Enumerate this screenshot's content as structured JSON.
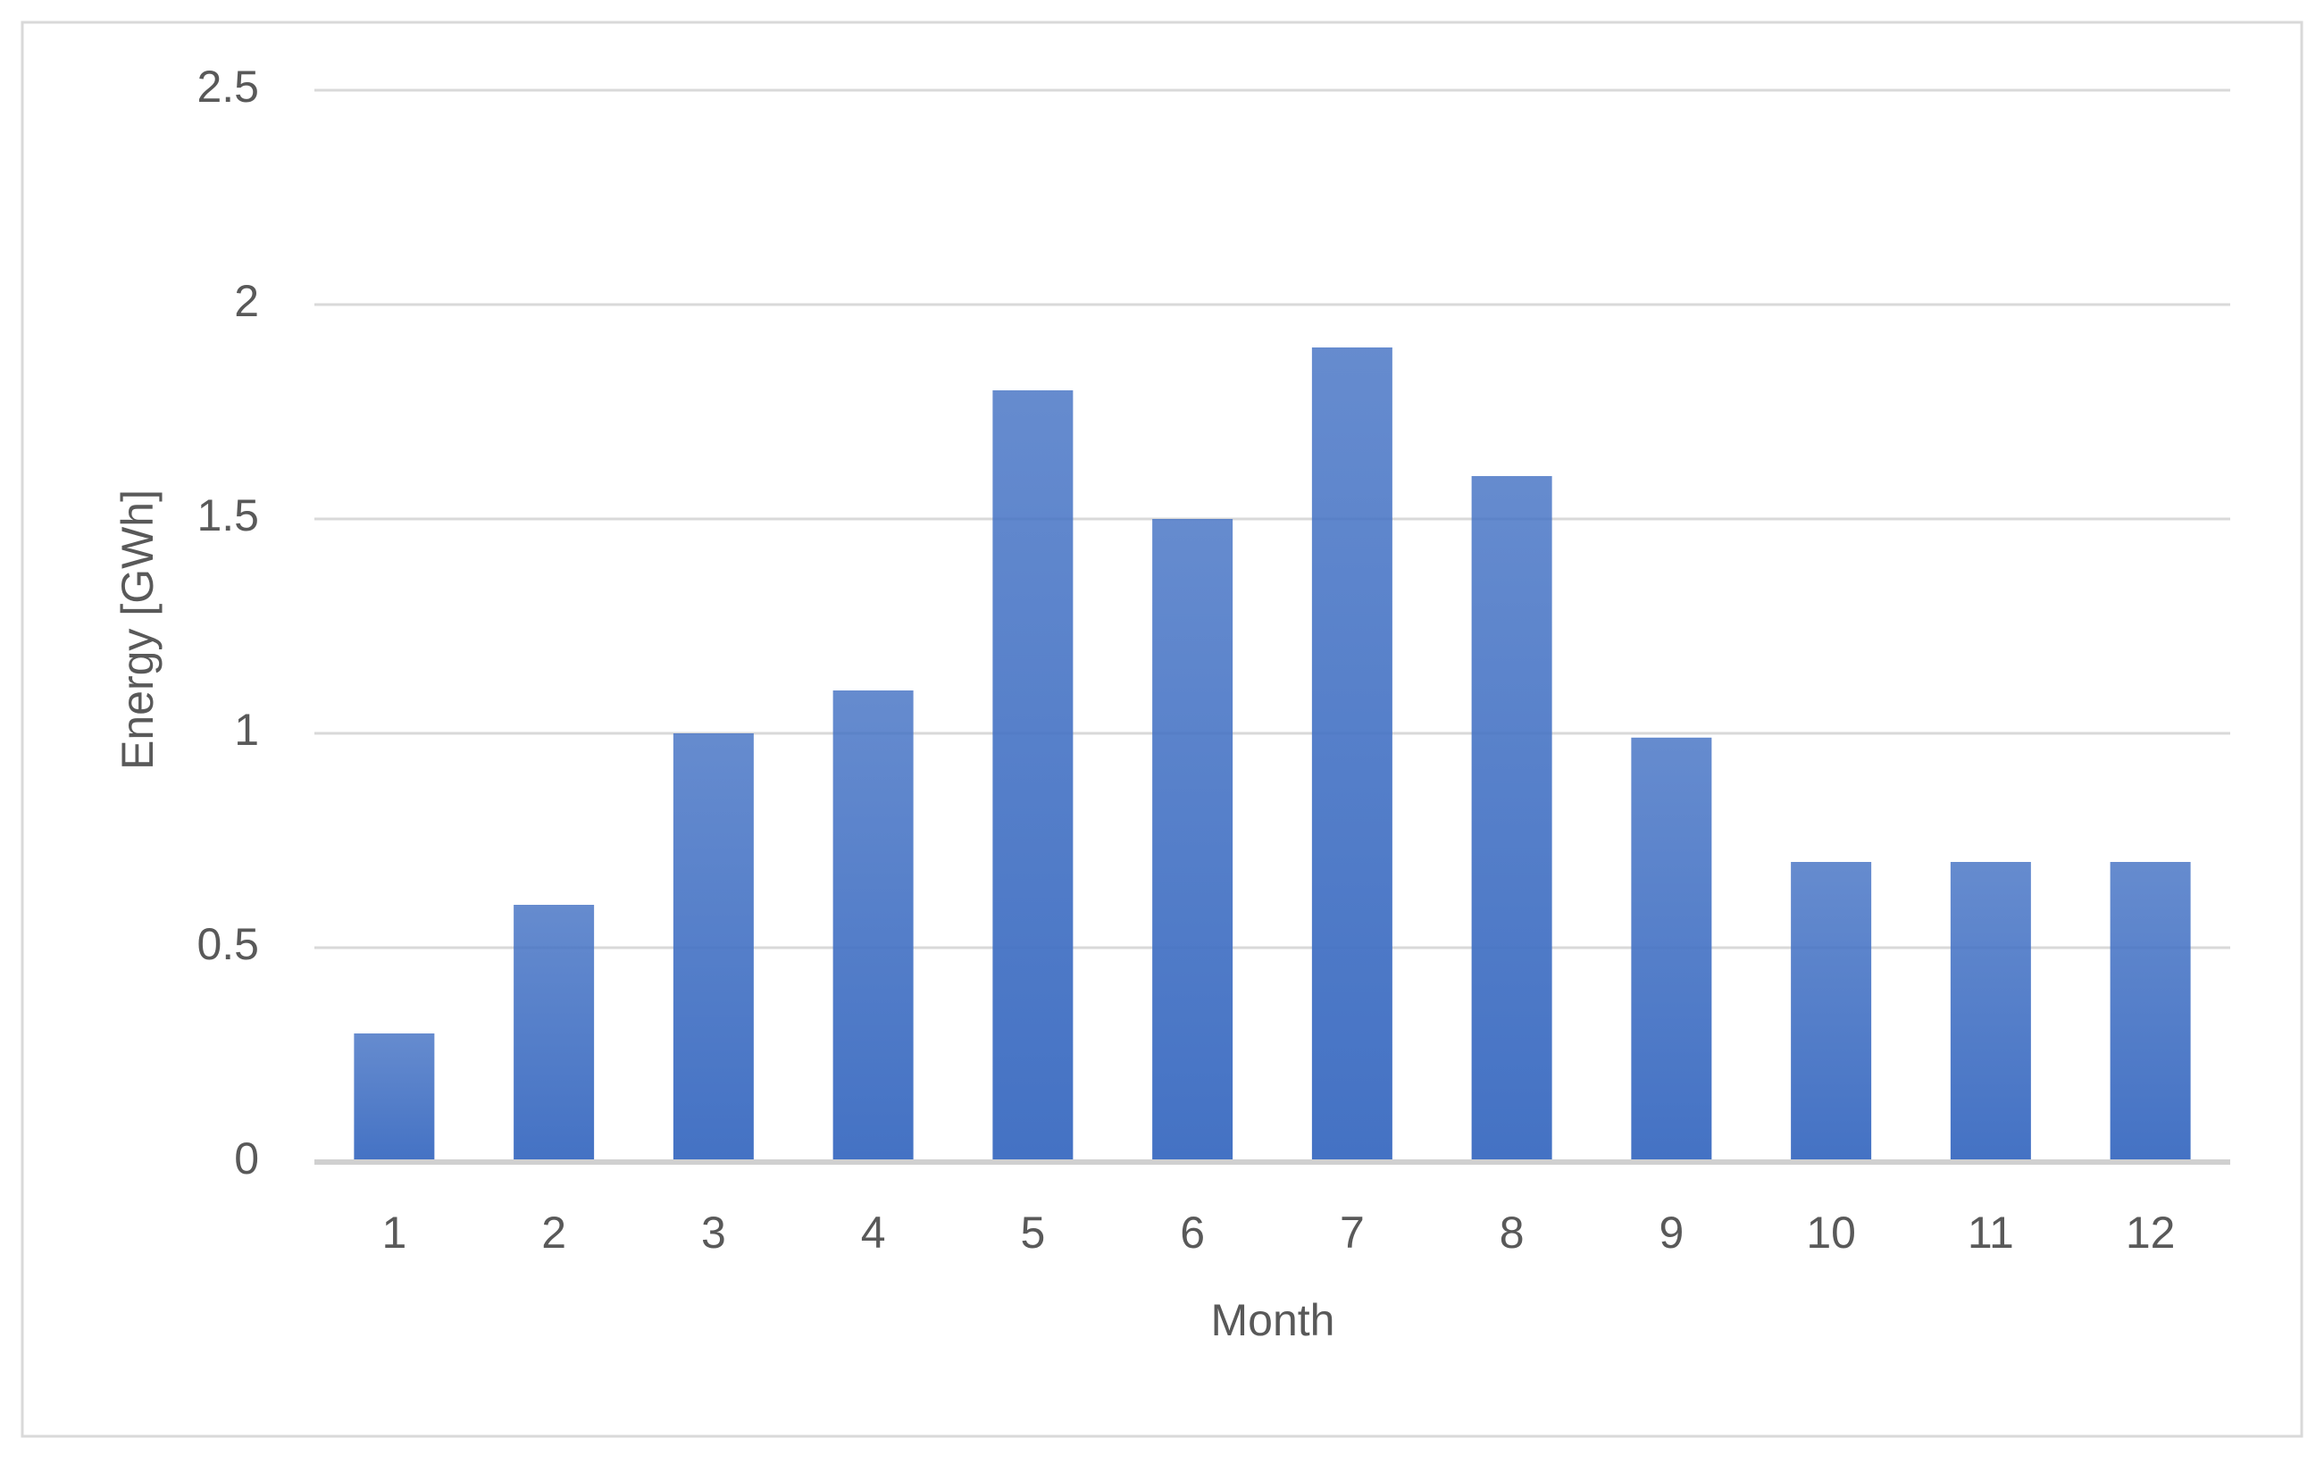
{
  "chart_data": {
    "type": "bar",
    "x_label": "Month",
    "y_label": "Energy [GWh]",
    "categories": [
      "1",
      "2",
      "3",
      "4",
      "5",
      "6",
      "7",
      "8",
      "9",
      "10",
      "11",
      "12"
    ],
    "values": [
      0.3,
      0.6,
      1.0,
      1.1,
      1.8,
      1.5,
      1.9,
      1.6,
      0.99,
      0.7,
      0.7,
      0.7
    ],
    "color": "#4472c4",
    "ylim": [
      0,
      2.5
    ],
    "yticks": [
      0,
      0.5,
      1,
      1.5,
      2,
      2.5
    ],
    "grid": true
  }
}
